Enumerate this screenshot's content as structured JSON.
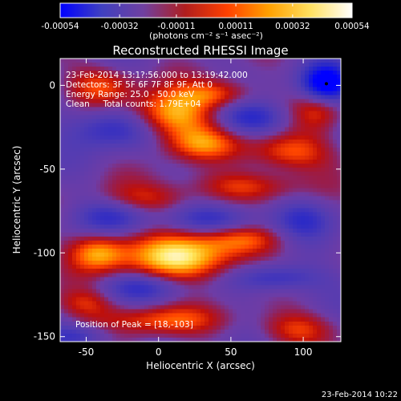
{
  "chart_data": {
    "type": "heatmap",
    "title": "Reconstructed RHESSI Image",
    "xlabel": "Heliocentric X (arcsec)",
    "ylabel": "Heliocentric Y (arcsec)",
    "xlim": [
      -68,
      126
    ],
    "ylim": [
      -153,
      16
    ],
    "x_ticks": [
      "-50",
      "0",
      "50",
      "100"
    ],
    "x_tick_values": [
      -50,
      0,
      50,
      100
    ],
    "y_ticks": [
      "0",
      "-50",
      "-100",
      "-150"
    ],
    "y_tick_values": [
      0,
      -50,
      -100,
      -150
    ],
    "colorbar": {
      "range": [
        -0.00054,
        0.00054
      ],
      "tick_labels": [
        "-0.00054",
        "-0.00032",
        "-0.00011",
        "0.00011",
        "0.00032",
        "0.00054"
      ],
      "tick_values": [
        -0.00054,
        -0.00032,
        -0.00011,
        0.00011,
        0.00032,
        0.00054
      ],
      "unit_label": "(photons cm⁻² s⁻¹ asec⁻²)",
      "colors": [
        "#0000ff",
        "#4040c0",
        "#7040a0",
        "#b01e1e",
        "#ff4000",
        "#ffa000",
        "#ffe060",
        "#ffffff"
      ]
    },
    "annotations": [
      "23-Feb-2014 13:1?:56.000 to 13:19:42.000",
      "Detectors: 3F 5F 6F 7F 8F 9F, Att 0",
      "Energy Range: 25.0 - 50.0 keV",
      "Clean     Total counts: 1.79E+04"
    ],
    "peak_label": "Position of Peak = [18,-103]",
    "peak": {
      "x": 18,
      "y": -103
    },
    "marker": {
      "x": 116,
      "y": 1
    },
    "footer_date": "23-Feb-2014 10:22",
    "bright_regions": [
      {
        "x": 8,
        "y": -18,
        "sx": 20,
        "sy": 10,
        "value": 0.0005
      },
      {
        "x": 18,
        "y": -103,
        "sx": 28,
        "sy": 10,
        "value": 0.00054
      },
      {
        "x": -42,
        "y": -100,
        "sx": 14,
        "sy": 8,
        "value": 0.0004
      },
      {
        "x": 30,
        "y": -35,
        "sx": 18,
        "sy": 7,
        "value": 0.0003
      },
      {
        "x": 90,
        "y": -40,
        "sx": 20,
        "sy": 8,
        "value": 0.00034
      },
      {
        "x": -40,
        "y": 0,
        "sx": 16,
        "sy": 8,
        "value": 0.00028
      },
      {
        "x": 40,
        "y": -5,
        "sx": 18,
        "sy": 6,
        "value": 0.0003
      },
      {
        "x": 60,
        "y": -60,
        "sx": 25,
        "sy": 6,
        "value": 0.00026
      },
      {
        "x": -5,
        "y": -68,
        "sx": 22,
        "sy": 7,
        "value": 0.00024
      },
      {
        "x": 0,
        "y": -140,
        "sx": 30,
        "sy": 6,
        "value": 0.0003
      },
      {
        "x": 95,
        "y": -145,
        "sx": 18,
        "sy": 7,
        "value": 0.00026
      },
      {
        "x": 110,
        "y": -15,
        "sx": 12,
        "sy": 8,
        "value": 0.00022
      },
      {
        "x": 60,
        "y": -92,
        "sx": 20,
        "sy": 6,
        "value": 0.00024
      },
      {
        "x": -50,
        "y": -130,
        "sx": 14,
        "sy": 6,
        "value": 0.00022
      }
    ],
    "dark_regions": [
      {
        "x": 116,
        "y": 1,
        "sx": 12,
        "sy": 8,
        "value": -0.00054
      },
      {
        "x": -30,
        "y": -25,
        "sx": 22,
        "sy": 9,
        "value": -0.0003
      },
      {
        "x": 65,
        "y": -20,
        "sx": 18,
        "sy": 7,
        "value": -0.00028
      },
      {
        "x": 40,
        "y": -80,
        "sx": 22,
        "sy": 6,
        "value": -0.00028
      },
      {
        "x": -30,
        "y": -78,
        "sx": 18,
        "sy": 7,
        "value": -0.00024
      },
      {
        "x": 80,
        "y": -115,
        "sx": 22,
        "sy": 6,
        "value": -0.0003
      },
      {
        "x": -10,
        "y": -120,
        "sx": 20,
        "sy": 6,
        "value": -0.00024
      },
      {
        "x": 100,
        "y": -80,
        "sx": 14,
        "sy": 8,
        "value": -0.00022
      },
      {
        "x": -55,
        "y": -150,
        "sx": 16,
        "sy": 5,
        "value": -0.00022
      }
    ]
  }
}
